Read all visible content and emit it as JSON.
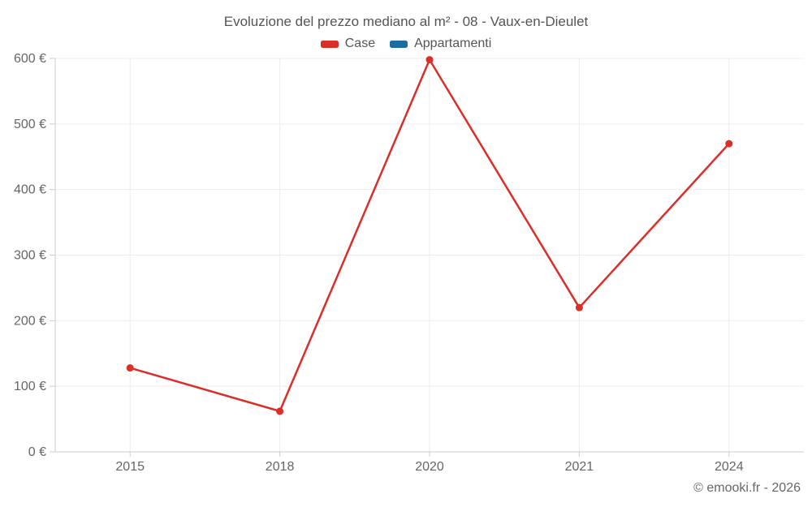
{
  "chart_data": {
    "type": "line",
    "title": "Evoluzione del prezzo mediano al m² - 08 - Vaux-en-Dieulet",
    "categories": [
      "2015",
      "2018",
      "2020",
      "2021",
      "2024"
    ],
    "series": [
      {
        "name": "Case",
        "color": "#db2e28",
        "values": [
          128,
          62,
          598,
          220,
          470
        ]
      },
      {
        "name": "Appartamenti",
        "color": "#1a6d9e",
        "values": []
      }
    ],
    "ylim": [
      0,
      600
    ],
    "y_ticks": [
      0,
      100,
      200,
      300,
      400,
      500,
      600
    ],
    "y_tick_labels": [
      "0 €",
      "100 €",
      "200 €",
      "300 €",
      "400 €",
      "500 €",
      "600 €"
    ],
    "grid": true,
    "legend_position": "top",
    "colors": {
      "grid": "#ededed",
      "axis": "#cccccc",
      "tick_label": "#666666",
      "title": "#555555"
    }
  },
  "footer": {
    "text": "© emooki.fr - 2026"
  }
}
